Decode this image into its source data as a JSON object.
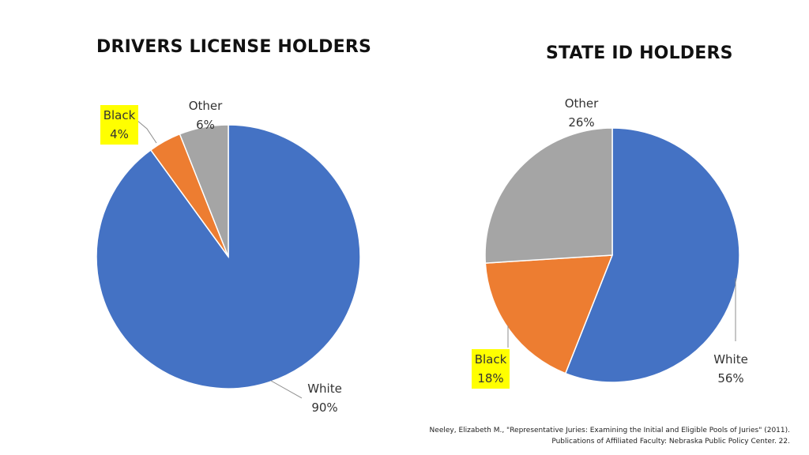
{
  "chart_data": [
    {
      "type": "pie",
      "title": "DRIVERS LICENSE HOLDERS",
      "categories": [
        "White",
        "Black",
        "Other"
      ],
      "values": [
        90,
        4,
        6
      ],
      "value_labels": [
        "90%",
        "4%",
        "6%"
      ],
      "colors": [
        "#4472C4",
        "#ED7D31",
        "#A5A5A5"
      ],
      "highlighted_labels": [
        "Black"
      ]
    },
    {
      "type": "pie",
      "title": "STATE ID HOLDERS",
      "categories": [
        "White",
        "Black",
        "Other"
      ],
      "values": [
        56,
        18,
        26
      ],
      "value_labels": [
        "56%",
        "18%",
        "26%"
      ],
      "colors": [
        "#4472C4",
        "#ED7D31",
        "#A5A5A5"
      ],
      "highlighted_labels": [
        "Black"
      ]
    }
  ],
  "highlight_color": "#FFFF00",
  "source": {
    "line1": "Neeley, Elizabeth M., \"Representative Juries: Examining the Initial and Eligible Pools of Juries\" (2011).",
    "line2": "Publications of Affiliated Faculty: Nebraska Public Policy Center. 22."
  }
}
